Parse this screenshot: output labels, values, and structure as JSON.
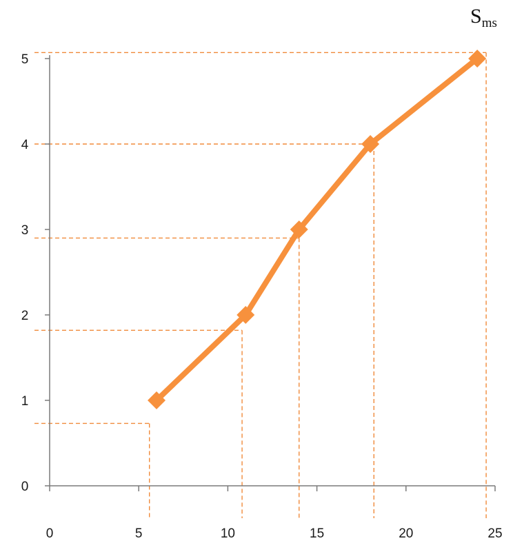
{
  "chart_data": {
    "type": "line",
    "title": "",
    "xlabel": "",
    "ylabel": "",
    "corner_label": {
      "main": "S",
      "sub": "ms"
    },
    "xlim": [
      0,
      25
    ],
    "ylim": [
      0,
      5
    ],
    "x_ticks": [
      "0",
      "5",
      "10",
      "15",
      "20",
      "25"
    ],
    "y_ticks": [
      "0",
      "1",
      "2",
      "3",
      "4",
      "5"
    ],
    "grid": false,
    "legend": "none",
    "series": [
      {
        "x": [
          6,
          11,
          14,
          18,
          24
        ],
        "y": [
          1,
          2,
          3,
          4,
          5
        ]
      }
    ],
    "reference_lines": [
      {
        "x": 5.6,
        "y": 0.73
      },
      {
        "x": 10.8,
        "y": 1.82
      },
      {
        "x": 14,
        "y": 2.9
      },
      {
        "x": 18.2,
        "y": 4
      },
      {
        "x": 24.5,
        "y": 5.07
      }
    ],
    "colors": {
      "series": "#f7913d",
      "reference": "#f08a3a",
      "axis": "#7a7a7a",
      "text": "#1a1a1a"
    }
  }
}
